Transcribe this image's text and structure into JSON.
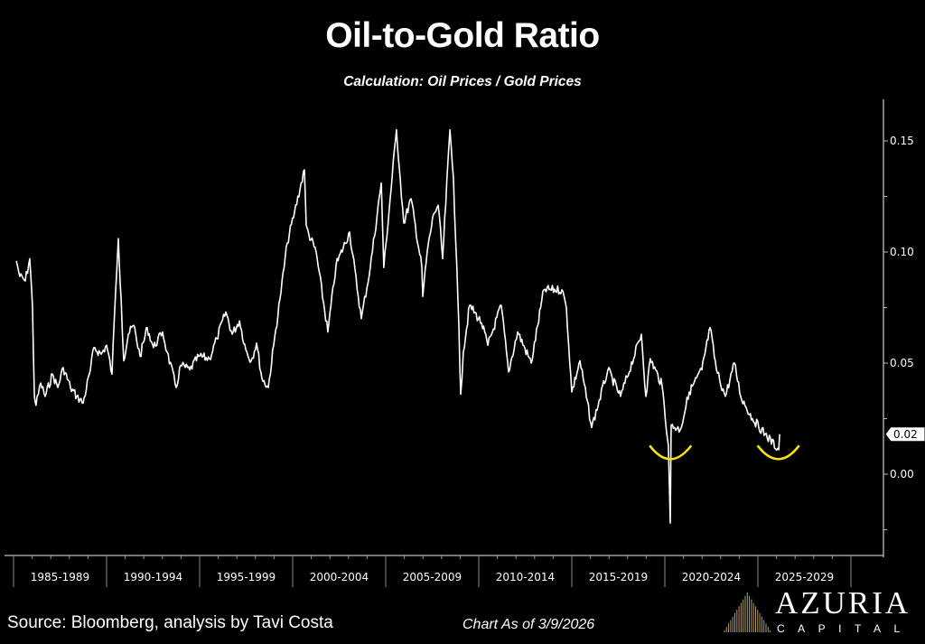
{
  "header": {
    "title": "Oil-to-Gold Ratio",
    "subtitle": "Calculation: Oil Prices / Gold Prices"
  },
  "footer": {
    "source": "Source: Bloomberg, analysis by Tavi Costa",
    "as_of": "Chart As of 3/9/2026",
    "logo_name": "AZURIA",
    "logo_sub": "CAPITAL"
  },
  "chart_data": {
    "type": "line",
    "title": "Oil-to-Gold Ratio",
    "subtitle": "Calculation: Oil Prices / Gold Prices",
    "xlabel": "",
    "ylabel": "",
    "xlim": [
      1985,
      2030
    ],
    "ylim": [
      -0.033,
      0.168
    ],
    "y_axis_side": "right",
    "y_ticks": [
      0.0,
      0.05,
      0.1,
      0.15
    ],
    "y_tick_labels": [
      "0.00",
      "0.05",
      "0.10",
      "0.15"
    ],
    "x_categories": [
      "1985-1989",
      "1990-1994",
      "1995-1999",
      "2000-2004",
      "2005-2009",
      "2010-2014",
      "2015-2019",
      "2020-2024",
      "2025-2029"
    ],
    "last_value_label": "0.02",
    "grid": false,
    "legend": "none",
    "line_color": "#ffffff",
    "annotation_color": "#ffe600",
    "annotations": [
      {
        "type": "arc-highlight",
        "x": 2020.3,
        "y": 0.008
      },
      {
        "type": "arc-highlight",
        "x": 2026.1,
        "y": 0.008
      }
    ],
    "series": [
      {
        "points": [
          [
            1985.15,
            0.096
          ],
          [
            1985.34,
            0.089
          ],
          [
            1985.63,
            0.087
          ],
          [
            1985.87,
            0.097
          ],
          [
            1986.02,
            0.075
          ],
          [
            1986.12,
            0.035
          ],
          [
            1986.21,
            0.031
          ],
          [
            1986.46,
            0.041
          ],
          [
            1986.7,
            0.035
          ],
          [
            1987.09,
            0.045
          ],
          [
            1987.38,
            0.039
          ],
          [
            1987.67,
            0.048
          ],
          [
            1988.06,
            0.039
          ],
          [
            1988.4,
            0.035
          ],
          [
            1988.74,
            0.032
          ],
          [
            1989.13,
            0.047
          ],
          [
            1989.32,
            0.057
          ],
          [
            1989.71,
            0.054
          ],
          [
            1990.0,
            0.058
          ],
          [
            1990.29,
            0.045
          ],
          [
            1990.49,
            0.083
          ],
          [
            1990.63,
            0.106
          ],
          [
            1990.78,
            0.079
          ],
          [
            1990.92,
            0.051
          ],
          [
            1991.17,
            0.063
          ],
          [
            1991.46,
            0.067
          ],
          [
            1991.8,
            0.053
          ],
          [
            1992.18,
            0.066
          ],
          [
            1992.52,
            0.057
          ],
          [
            1993.01,
            0.064
          ],
          [
            1993.25,
            0.055
          ],
          [
            1993.74,
            0.039
          ],
          [
            1993.98,
            0.049
          ],
          [
            1994.47,
            0.047
          ],
          [
            1994.95,
            0.053
          ],
          [
            1995.53,
            0.052
          ],
          [
            1995.92,
            0.061
          ],
          [
            1996.41,
            0.073
          ],
          [
            1996.75,
            0.063
          ],
          [
            1997.14,
            0.069
          ],
          [
            1997.48,
            0.056
          ],
          [
            1997.77,
            0.051
          ],
          [
            1998.06,
            0.059
          ],
          [
            1998.35,
            0.043
          ],
          [
            1998.69,
            0.039
          ],
          [
            1998.98,
            0.058
          ],
          [
            1999.32,
            0.079
          ],
          [
            1999.71,
            0.104
          ],
          [
            2000.1,
            0.118
          ],
          [
            2000.63,
            0.137
          ],
          [
            2000.73,
            0.112
          ],
          [
            2000.87,
            0.108
          ],
          [
            2001.26,
            0.1
          ],
          [
            2001.89,
            0.064
          ],
          [
            2002.33,
            0.094
          ],
          [
            2003.06,
            0.109
          ],
          [
            2003.69,
            0.07
          ],
          [
            2004.17,
            0.093
          ],
          [
            2004.76,
            0.131
          ],
          [
            2004.9,
            0.093
          ],
          [
            2005.58,
            0.155
          ],
          [
            2005.78,
            0.133
          ],
          [
            2005.97,
            0.113
          ],
          [
            2006.36,
            0.124
          ],
          [
            2006.94,
            0.093
          ],
          [
            2006.99,
            0.08
          ],
          [
            2007.23,
            0.1
          ],
          [
            2007.57,
            0.117
          ],
          [
            2007.82,
            0.121
          ],
          [
            2008.06,
            0.097
          ],
          [
            2008.45,
            0.155
          ],
          [
            2008.64,
            0.133
          ],
          [
            2008.88,
            0.079
          ],
          [
            2009.03,
            0.036
          ],
          [
            2009.17,
            0.055
          ],
          [
            2009.51,
            0.076
          ],
          [
            2010.15,
            0.068
          ],
          [
            2010.49,
            0.058
          ],
          [
            2011.21,
            0.076
          ],
          [
            2011.6,
            0.046
          ],
          [
            2012.09,
            0.064
          ],
          [
            2012.82,
            0.05
          ],
          [
            2013.5,
            0.083
          ],
          [
            2014.47,
            0.083
          ],
          [
            2014.71,
            0.075
          ],
          [
            2015.0,
            0.037
          ],
          [
            2015.44,
            0.051
          ],
          [
            2016.07,
            0.021
          ],
          [
            2016.94,
            0.047
          ],
          [
            2017.62,
            0.035
          ],
          [
            2018.74,
            0.063
          ],
          [
            2018.98,
            0.035
          ],
          [
            2019.22,
            0.052
          ],
          [
            2019.85,
            0.04
          ],
          [
            2020.19,
            0.013
          ],
          [
            2020.29,
            -0.022
          ],
          [
            2020.34,
            0.022
          ],
          [
            2020.83,
            0.02
          ],
          [
            2021.31,
            0.037
          ],
          [
            2021.99,
            0.047
          ],
          [
            2022.43,
            0.066
          ],
          [
            2022.77,
            0.047
          ],
          [
            2023.25,
            0.035
          ],
          [
            2023.74,
            0.05
          ],
          [
            2024.08,
            0.035
          ],
          [
            2024.71,
            0.025
          ],
          [
            2025.39,
            0.018
          ],
          [
            2026.12,
            0.011
          ],
          [
            2026.17,
            0.018
          ]
        ]
      }
    ]
  }
}
